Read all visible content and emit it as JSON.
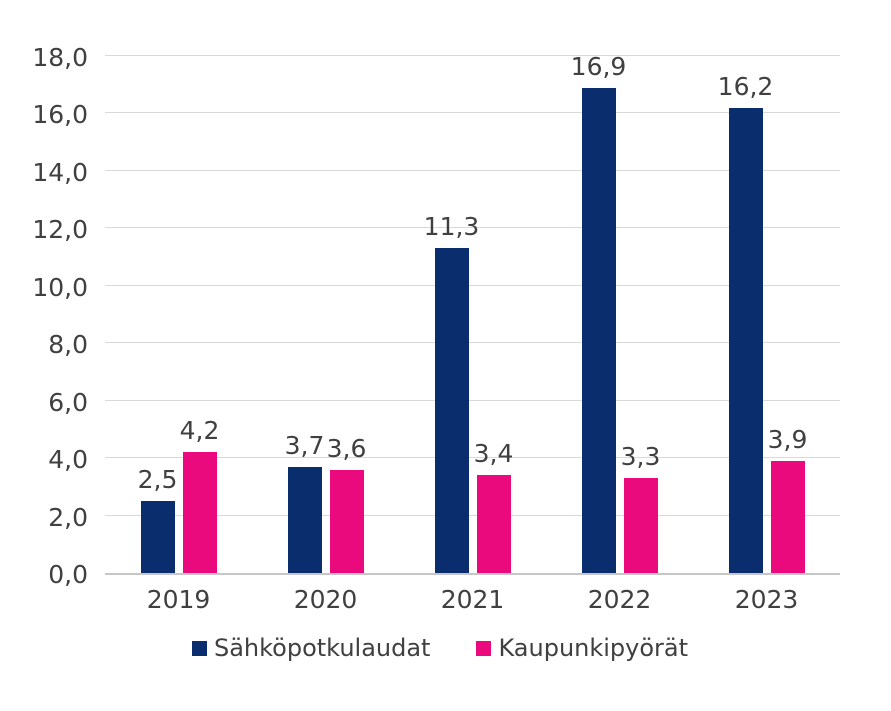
{
  "chart_data": {
    "type": "bar",
    "title": "",
    "xlabel": "",
    "ylabel": "",
    "categories": [
      "2019",
      "2020",
      "2021",
      "2022",
      "2023"
    ],
    "series": [
      {
        "name": "Sähköpotkulaudat",
        "color": "#0a2d6e",
        "values": [
          2.5,
          3.7,
          11.3,
          16.9,
          16.2
        ],
        "labels": [
          "2,5",
          "3,7",
          "11,3",
          "16,9",
          "16,2"
        ]
      },
      {
        "name": "Kaupunkipyörät",
        "color": "#eb0a7e",
        "values": [
          4.2,
          3.6,
          3.4,
          3.3,
          3.9
        ],
        "labels": [
          "4,2",
          "3,6",
          "3,4",
          "3,3",
          "3,9"
        ]
      }
    ],
    "ylim": [
      0,
      18
    ],
    "ytick_step": 2,
    "ytick_labels": [
      "0,0",
      "2,0",
      "4,0",
      "6,0",
      "8,0",
      "10,0",
      "12,0",
      "14,0",
      "16,0",
      "18,0"
    ],
    "grid": true,
    "legend_position": "bottom"
  },
  "colors": {
    "text": "#404040",
    "grid": "#d9d9d9",
    "axis": "#c6c6c6",
    "background": "#ffffff"
  }
}
